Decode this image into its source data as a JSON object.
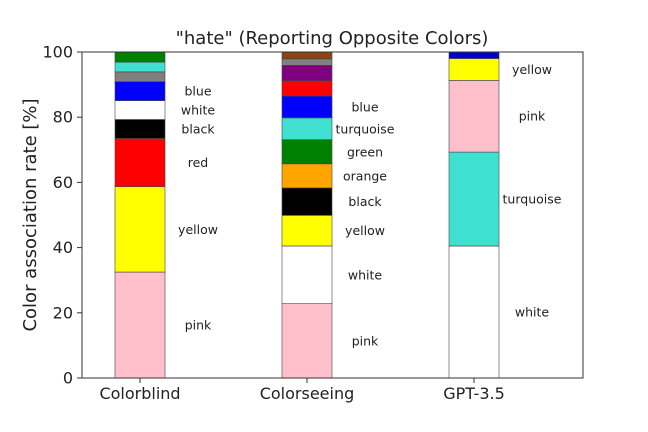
{
  "chart_data": {
    "type": "bar",
    "stacked": true,
    "title": "\"hate\" (Reporting Opposite Colors)",
    "xlabel": "",
    "ylabel": "Color association rate [%]",
    "ylim": [
      0,
      100
    ],
    "yticks": [
      0,
      20,
      40,
      60,
      80,
      100
    ],
    "grid": false,
    "categories": [
      "Colorblind",
      "Colorseeing",
      "GPT-3.5"
    ],
    "stacks": [
      {
        "category": "Colorblind",
        "segments": [
          {
            "color_name": "pink",
            "value": 32.5,
            "color": "#ffc0cb",
            "label": "pink"
          },
          {
            "color_name": "yellow",
            "value": 26.2,
            "color": "#ffff00",
            "label": "yellow"
          },
          {
            "color_name": "red",
            "value": 14.8,
            "color": "#ff0000",
            "label": "red"
          },
          {
            "color_name": "black",
            "value": 5.8,
            "color": "#000000",
            "label": "black"
          },
          {
            "color_name": "white",
            "value": 5.8,
            "color": "#ffffff",
            "label": "white"
          },
          {
            "color_name": "blue",
            "value": 5.8,
            "color": "#0000ff",
            "label": "blue"
          },
          {
            "color_name": "gray",
            "value": 3.0,
            "color": "#808080",
            "label": ""
          },
          {
            "color_name": "turquoise",
            "value": 3.0,
            "color": "#40e0d0",
            "label": ""
          },
          {
            "color_name": "green",
            "value": 3.1,
            "color": "#008000",
            "label": ""
          }
        ]
      },
      {
        "category": "Colorseeing",
        "segments": [
          {
            "color_name": "pink",
            "value": 22.8,
            "color": "#ffc0cb",
            "label": "pink"
          },
          {
            "color_name": "white",
            "value": 17.7,
            "color": "#ffffff",
            "label": "white"
          },
          {
            "color_name": "yellow",
            "value": 9.4,
            "color": "#ffff00",
            "label": "yellow"
          },
          {
            "color_name": "black",
            "value": 8.4,
            "color": "#000000",
            "label": "black"
          },
          {
            "color_name": "orange",
            "value": 7.4,
            "color": "#ffa500",
            "label": "orange"
          },
          {
            "color_name": "green",
            "value": 7.4,
            "color": "#008000",
            "label": "green"
          },
          {
            "color_name": "turquoise",
            "value": 6.7,
            "color": "#40e0d0",
            "label": "turquoise"
          },
          {
            "color_name": "blue",
            "value": 6.7,
            "color": "#0000ff",
            "label": "blue"
          },
          {
            "color_name": "red",
            "value": 4.7,
            "color": "#ff0000",
            "label": ""
          },
          {
            "color_name": "purple",
            "value": 4.7,
            "color": "#800080",
            "label": ""
          },
          {
            "color_name": "gray",
            "value": 2.0,
            "color": "#808080",
            "label": ""
          },
          {
            "color_name": "brown",
            "value": 2.1,
            "color": "#8b4513",
            "label": ""
          }
        ]
      },
      {
        "category": "GPT-3.5",
        "segments": [
          {
            "color_name": "white",
            "value": 40.5,
            "color": "#ffffff",
            "label": "white"
          },
          {
            "color_name": "turquoise",
            "value": 28.8,
            "color": "#40e0d0",
            "label": "turquoise"
          },
          {
            "color_name": "pink",
            "value": 22.0,
            "color": "#ffc0cb",
            "label": "pink"
          },
          {
            "color_name": "yellow",
            "value": 6.7,
            "color": "#ffff00",
            "label": "yellow"
          },
          {
            "color_name": "blue",
            "value": 2.0,
            "color": "#0000cd",
            "label": ""
          }
        ]
      }
    ]
  }
}
